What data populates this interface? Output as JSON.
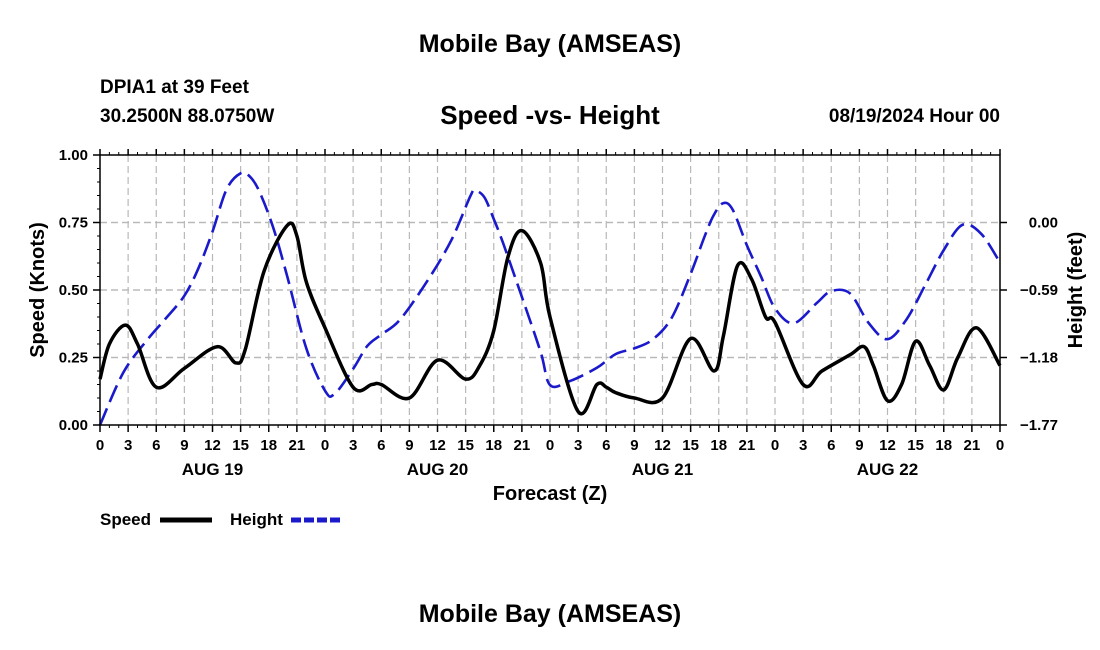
{
  "header": {
    "title": "Mobile Bay (AMSEAS)",
    "station": "DPIA1 at 39 Feet",
    "coords": "30.2500N  88.0750W",
    "subtitle": "Speed -vs- Height",
    "datetime": "08/19/2024 Hour 00"
  },
  "footer": {
    "title": "Mobile Bay (AMSEAS)"
  },
  "chart_data": {
    "type": "line",
    "title": "Speed -vs- Height",
    "xlabel": "Forecast (Z)",
    "ylabel": "Speed (Knots)",
    "ylabel_right": "Height (feet)",
    "xlim": [
      0,
      96
    ],
    "ylim": [
      0,
      1
    ],
    "ylim_right": [
      -1.77,
      0.59
    ],
    "x_ticks": [
      0,
      3,
      6,
      9,
      12,
      15,
      18,
      21,
      24,
      27,
      30,
      33,
      36,
      39,
      42,
      45,
      48,
      51,
      54,
      57,
      60,
      63,
      66,
      69,
      72,
      75,
      78,
      81,
      84,
      87,
      90,
      93,
      96
    ],
    "x_tick_labels": [
      "0",
      "3",
      "6",
      "9",
      "12",
      "15",
      "18",
      "21",
      "0",
      "3",
      "6",
      "9",
      "12",
      "15",
      "18",
      "21",
      "0",
      "3",
      "6",
      "9",
      "12",
      "15",
      "18",
      "21",
      "0",
      "3",
      "6",
      "9",
      "12",
      "15",
      "18",
      "21",
      "0"
    ],
    "day_labels": [
      {
        "x": 12,
        "label": "AUG 19"
      },
      {
        "x": 36,
        "label": "AUG 20"
      },
      {
        "x": 60,
        "label": "AUG 21"
      },
      {
        "x": 84,
        "label": "AUG 22"
      }
    ],
    "y_ticks": [
      0,
      0.25,
      0.5,
      0.75,
      1.0
    ],
    "y_tick_labels": [
      "0.00",
      "0.25",
      "0.50",
      "0.75",
      "1.00"
    ],
    "y_right_ticks": [
      -1.77,
      -1.18,
      -0.59,
      0.0
    ],
    "y_right_tick_labels": [
      "−1.77",
      "−1.18",
      "−0.59",
      "0.00"
    ],
    "grid": true,
    "legend": {
      "position": "bottom-left",
      "entries": [
        "Speed",
        "Height"
      ]
    },
    "series": [
      {
        "name": "Speed",
        "axis": "left",
        "color": "#000000",
        "dash": "solid",
        "x": [
          0,
          1,
          2.7,
          4,
          6,
          9,
          12.5,
          14.5,
          15.5,
          17.5,
          20,
          21,
          22,
          24,
          27,
          29,
          30,
          33,
          36,
          39,
          40.5,
          42,
          43.5,
          45,
          47,
          48,
          51,
          53,
          54,
          55,
          57,
          60,
          63,
          65.5,
          66.5,
          68,
          69.5,
          71,
          72,
          75,
          77,
          80,
          81.5,
          82.5,
          84,
          85.5,
          87,
          88.5,
          90,
          91.5,
          93.5,
          96
        ],
        "y": [
          0.17,
          0.3,
          0.37,
          0.3,
          0.14,
          0.21,
          0.29,
          0.23,
          0.28,
          0.57,
          0.74,
          0.7,
          0.53,
          0.36,
          0.14,
          0.15,
          0.15,
          0.1,
          0.24,
          0.17,
          0.22,
          0.35,
          0.62,
          0.72,
          0.6,
          0.4,
          0.05,
          0.15,
          0.14,
          0.12,
          0.1,
          0.1,
          0.32,
          0.2,
          0.33,
          0.59,
          0.54,
          0.4,
          0.38,
          0.15,
          0.2,
          0.26,
          0.29,
          0.22,
          0.09,
          0.15,
          0.31,
          0.22,
          0.13,
          0.25,
          0.36,
          0.22
        ]
      },
      {
        "name": "Height",
        "axis": "right",
        "color": "#1a1acc",
        "dash": "dashed",
        "x": [
          0,
          2.5,
          5,
          7,
          9,
          10.5,
          12,
          13.5,
          15,
          16,
          17,
          18.5,
          20,
          22,
          24,
          25,
          27,
          28.5,
          30,
          32,
          35,
          37.5,
          39.5,
          40,
          41,
          42,
          43,
          45,
          47,
          48,
          50,
          53,
          55,
          57,
          59,
          61,
          63,
          64.5,
          65.5,
          66.5,
          67.5,
          69,
          70.5,
          72,
          74,
          76.5,
          78,
          80,
          82,
          84,
          86,
          88,
          90,
          92,
          94,
          96
        ],
        "y": [
          -1.77,
          -1.31,
          -1.03,
          -0.84,
          -0.64,
          -0.4,
          -0.08,
          0.29,
          0.43,
          0.4,
          0.27,
          -0.05,
          -0.48,
          -1.1,
          -1.47,
          -1.5,
          -1.28,
          -1.08,
          -0.98,
          -0.85,
          -0.5,
          -0.15,
          0.23,
          0.28,
          0.22,
          0.03,
          -0.18,
          -0.65,
          -1.13,
          -1.42,
          -1.39,
          -1.27,
          -1.15,
          -1.1,
          -1.02,
          -0.83,
          -0.45,
          -0.12,
          0.07,
          0.17,
          0.11,
          -0.2,
          -0.47,
          -0.75,
          -0.88,
          -0.7,
          -0.6,
          -0.62,
          -0.88,
          -1.02,
          -0.85,
          -0.55,
          -0.24,
          -0.02,
          -0.1,
          -0.35
        ]
      }
    ]
  }
}
